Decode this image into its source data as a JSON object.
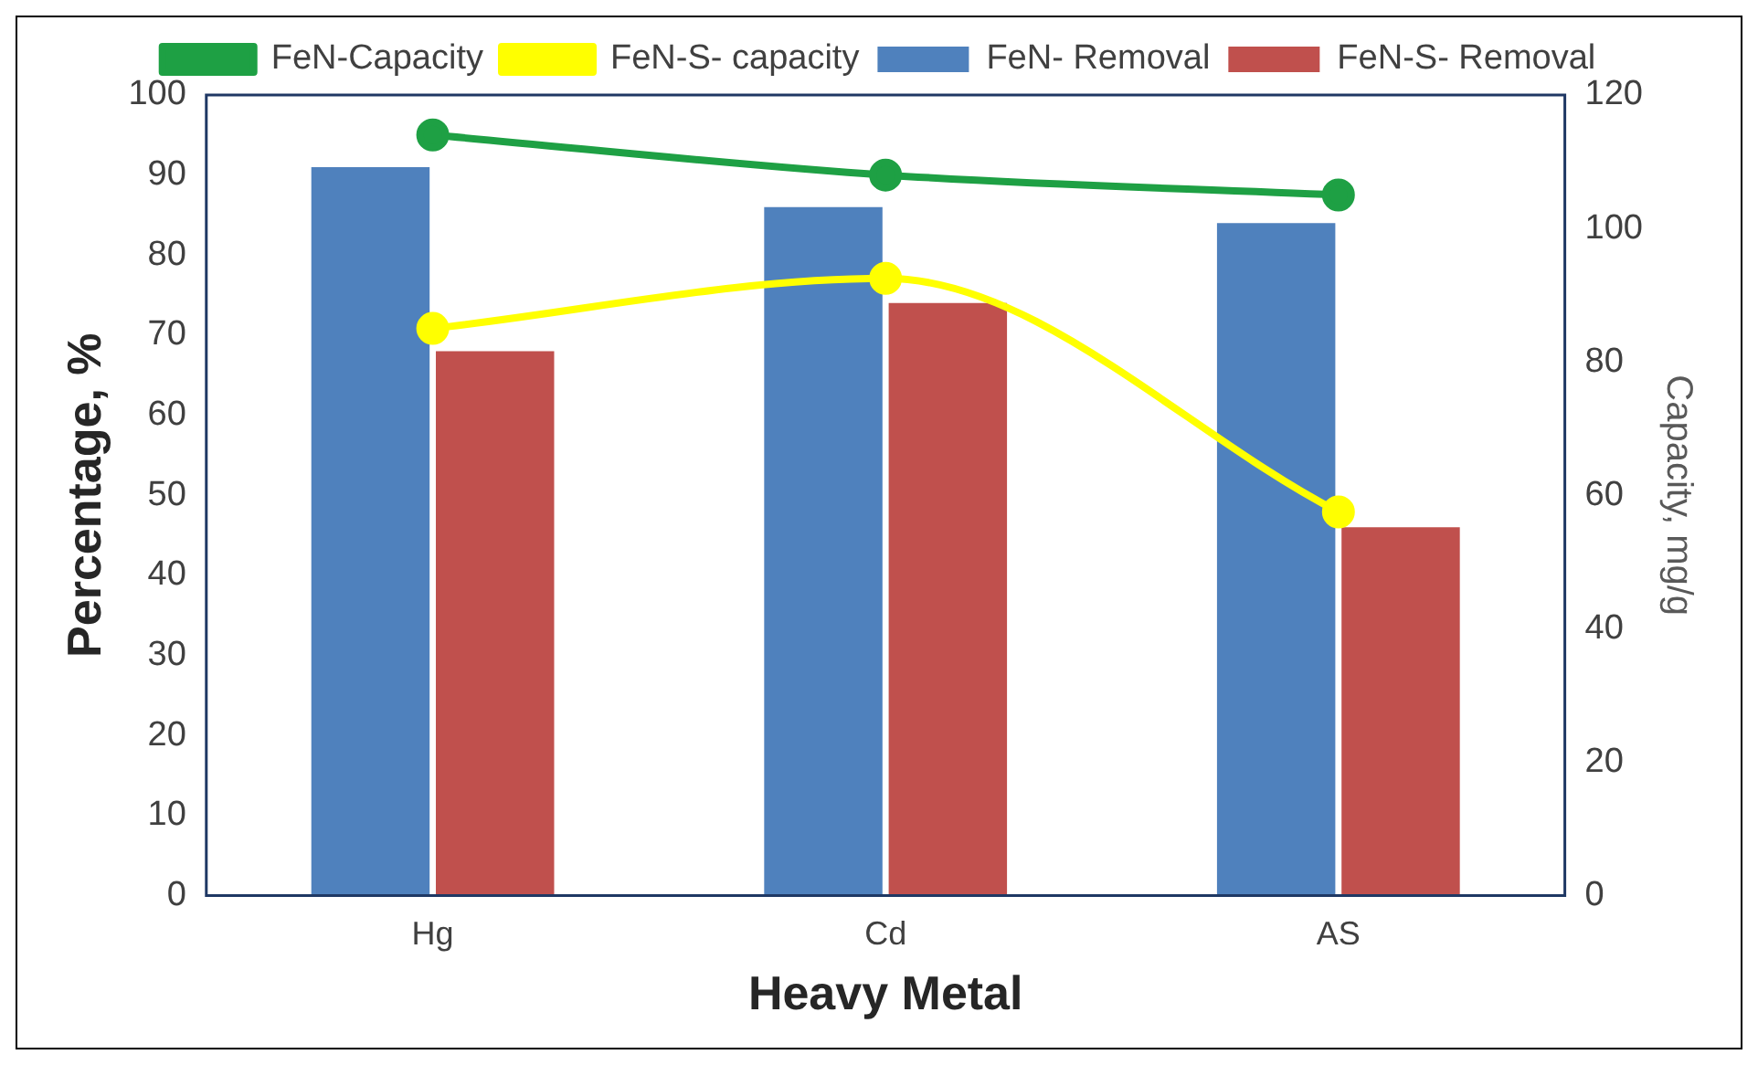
{
  "chart_data": {
    "type": "bar",
    "xlabel": "Heavy Metal",
    "ylabel": "Percentage, %",
    "y2label": "Capacity, mg/g",
    "categories": [
      "Hg",
      "Cd",
      "AS"
    ],
    "series": [
      {
        "name": "FeN- Removal",
        "color": "#4f81bd",
        "values": [
          91,
          86,
          84
        ]
      },
      {
        "name": "FeN-S- Removal",
        "color": "#c0504d",
        "values": [
          68,
          74,
          46
        ]
      },
      {
        "name": "FeN-Capacity",
        "type": "line",
        "axis": "y2",
        "color": "#1ea044",
        "values": [
          114,
          108,
          105
        ]
      },
      {
        "name": "FeN-S- capacity",
        "type": "line",
        "axis": "y2",
        "color": "#ffff00",
        "values": [
          85,
          92.5,
          57.5
        ]
      }
    ],
    "ylim": [
      0,
      100
    ],
    "yticks": [
      0,
      10,
      20,
      30,
      40,
      50,
      60,
      70,
      80,
      90,
      100
    ],
    "y2lim": [
      0,
      120
    ],
    "y2ticks": [
      0,
      20,
      40,
      60,
      80,
      100,
      120
    ],
    "legend": "top",
    "grid": false,
    "marker": "circle"
  }
}
